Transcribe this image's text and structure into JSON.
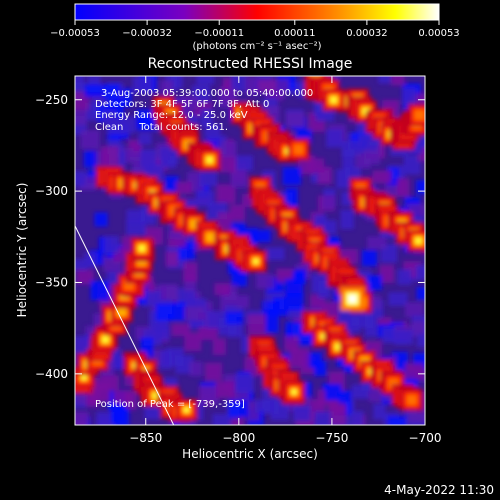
{
  "chart_data": {
    "type": "heatmap",
    "title": "Reconstructed RHESSI Image",
    "xlabel": "Heliocentric X (arcsec)",
    "ylabel": "Heliocentric Y (arcsec)",
    "xlim": [
      -888,
      -700
    ],
    "ylim": [
      -428,
      -237
    ],
    "x_ticks": [
      -850,
      -800,
      -750,
      -700
    ],
    "x_tick_labels": [
      "−850",
      "−800",
      "−750",
      "−700"
    ],
    "y_ticks": [
      -250,
      -300,
      -350,
      -400
    ],
    "y_tick_labels": [
      "−250",
      "−300",
      "−350",
      "−400"
    ],
    "colorbar": {
      "min": -0.00053,
      "max": 0.00053,
      "ticks": [
        -0.00053,
        -0.00032,
        -0.00011,
        0.00011,
        0.00032,
        0.00053
      ],
      "tick_labels": [
        "−0.00053",
        "−0.00032",
        "−0.00011",
        "0.00011",
        "0.00032",
        "0.00053"
      ],
      "unit_label": "(photons cm⁻² s⁻¹ asec⁻²)",
      "colormap": [
        "#0000ff",
        "#7a00c0",
        "#ff0000",
        "#ff8c00",
        "#ffff00",
        "#ffffff"
      ]
    },
    "annotations": [
      "3-Aug-2003 05:39:00.000 to 05:40:00.000",
      "Detectors: 3F 4F 5F 6F 7F 8F, Att 0",
      "Energy Range: 12.0 - 25.0 keV",
      "Clean     Total counts: 561."
    ],
    "peak_label": "Position of Peak = [-739,-359]",
    "peak": [
      -739,
      -359
    ],
    "limb_line": [
      [
        -888,
        -319
      ],
      [
        -835,
        -428
      ]
    ],
    "grid": false
  },
  "footer": {
    "date": "4-May-2022 11:30"
  }
}
